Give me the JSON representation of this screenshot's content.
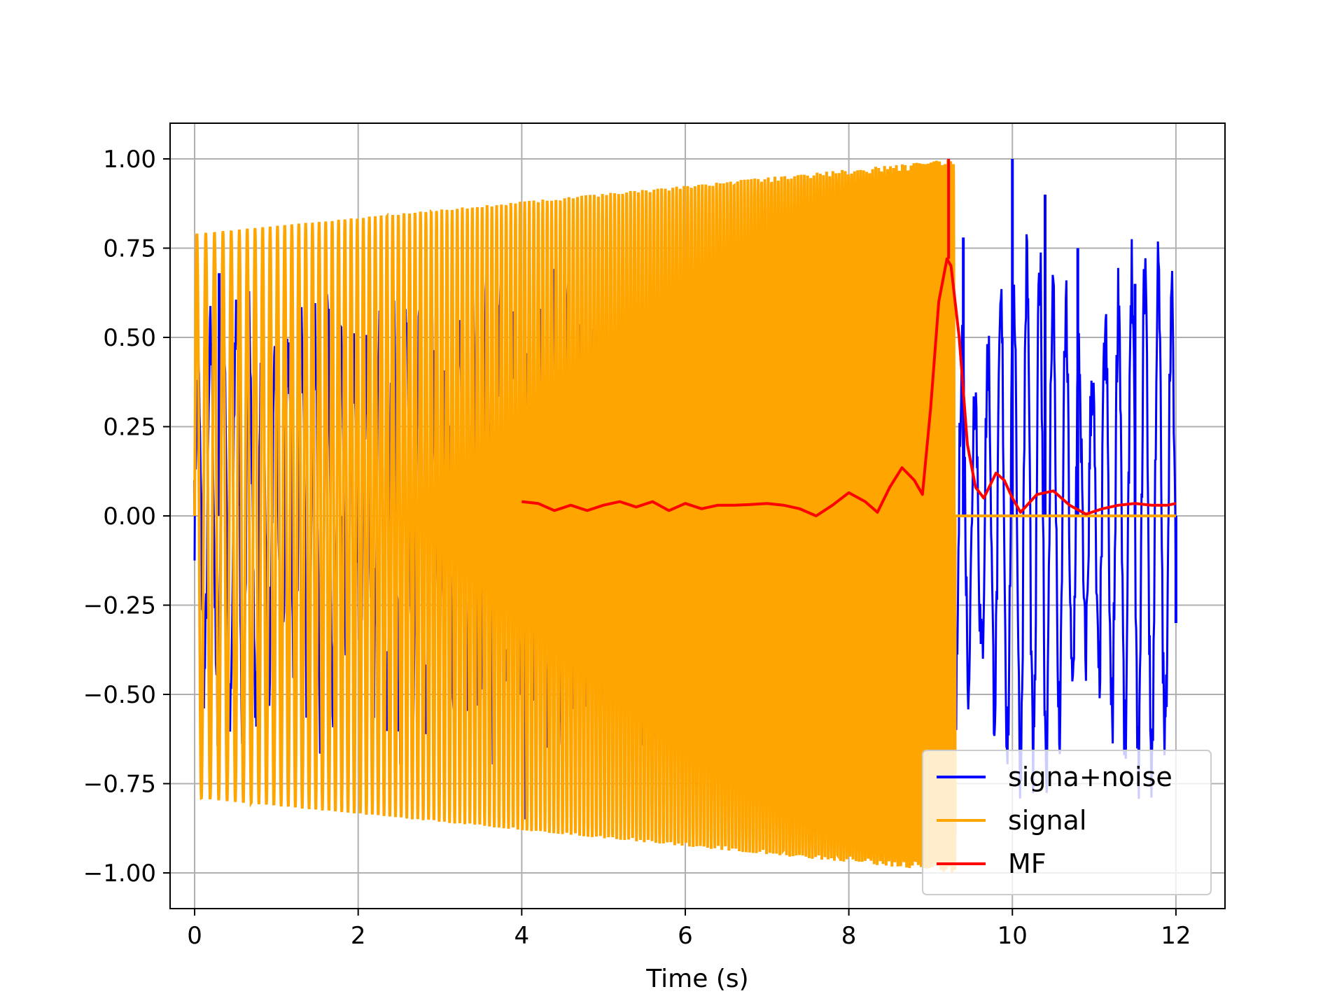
{
  "chart_data": {
    "type": "line",
    "title": "",
    "xlabel": "Time (s)",
    "ylabel": "",
    "xlim": [
      -0.3,
      12.6
    ],
    "ylim": [
      -1.1,
      1.1
    ],
    "x_ticks": [
      0,
      2,
      4,
      6,
      8,
      10,
      12
    ],
    "x_tick_labels": [
      "0",
      "2",
      "4",
      "6",
      "8",
      "10",
      "12"
    ],
    "y_ticks": [
      1.0,
      0.75,
      0.5,
      0.25,
      0.0,
      -0.25,
      -0.5,
      -0.75,
      -1.0
    ],
    "y_tick_labels": [
      "1.00",
      "0.75",
      "0.50",
      "0.25",
      "0.00",
      "−0.25",
      "−0.50",
      "−0.75",
      "−1.00"
    ],
    "grid": true,
    "legend_position": "lower-right",
    "series": [
      {
        "name": "signa+noise",
        "color": "#0000ff",
        "description_points": {
          "x": [
            0.0,
            0.3,
            1.8,
            4.05,
            9.4,
            10.0,
            10.4,
            10.8,
            11.5,
            12.0
          ],
          "y": [
            0.1,
            0.68,
            -0.82,
            -0.85,
            0.78,
            1.0,
            0.9,
            0.75,
            0.65,
            -0.3
          ]
        }
      },
      {
        "name": "signal",
        "color": "#ffa500",
        "envelope": {
          "x": [
            0.0,
            9.3
          ],
          "amplitude": [
            0.79,
            1.0
          ],
          "zero_after": 9.3,
          "zero_until": 12.0
        }
      },
      {
        "name": "MF",
        "color": "#ff0000",
        "x": [
          4.0,
          4.2,
          4.4,
          4.6,
          4.8,
          5.0,
          5.2,
          5.4,
          5.6,
          5.8,
          6.0,
          6.2,
          6.4,
          6.5,
          6.6,
          6.8,
          7.0,
          7.2,
          7.4,
          7.6,
          7.8,
          8.0,
          8.2,
          8.35,
          8.5,
          8.65,
          8.8,
          8.9,
          9.0,
          9.1,
          9.2,
          9.25,
          9.35,
          9.45,
          9.55,
          9.65,
          9.8,
          9.9,
          10.0,
          10.1,
          10.3,
          10.5,
          10.7,
          10.9,
          11.1,
          11.3,
          11.5,
          11.7,
          11.9,
          12.0
        ],
        "y": [
          0.04,
          0.035,
          0.015,
          0.03,
          0.015,
          0.03,
          0.04,
          0.025,
          0.04,
          0.015,
          0.035,
          0.02,
          0.03,
          0.03,
          0.03,
          0.032,
          0.035,
          0.03,
          0.02,
          0.0,
          0.03,
          0.065,
          0.04,
          0.01,
          0.08,
          0.135,
          0.1,
          0.06,
          0.3,
          0.6,
          0.72,
          0.7,
          0.5,
          0.2,
          0.08,
          0.05,
          0.12,
          0.1,
          0.05,
          0.01,
          0.06,
          0.07,
          0.03,
          0.005,
          0.02,
          0.03,
          0.035,
          0.03,
          0.03,
          0.035
        ]
      }
    ]
  }
}
